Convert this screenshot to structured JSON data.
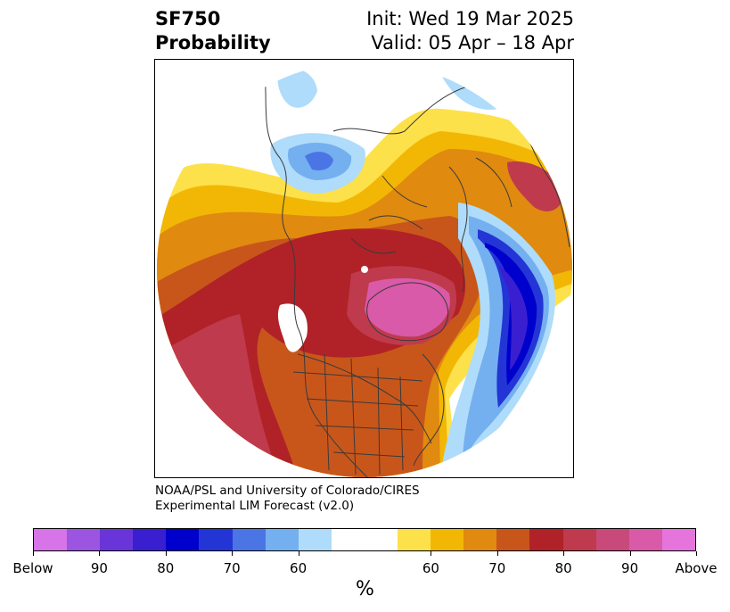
{
  "title": {
    "left_line1": "SF750",
    "left_line2": "Probability",
    "right_line1": "Init: Wed 19 Mar 2025",
    "right_line2": "Valid: 05 Apr – 18 Apr"
  },
  "credit": {
    "line1": "NOAA/PSL and University of Colorado/CIRES",
    "line2": "Experimental LIM Forecast (v2.0)"
  },
  "colorbar": {
    "colors": [
      "#d774e8",
      "#9b55e0",
      "#6a35d8",
      "#3a1fd0",
      "#0000cd",
      "#2435d6",
      "#4b74e4",
      "#74aff0",
      "#aedcfa",
      "#ffffff",
      "#ffffff",
      "#fde14a",
      "#f2b705",
      "#e08a10",
      "#c8561b",
      "#b02228",
      "#c03a4d",
      "#c84a7a",
      "#d95aa8",
      "#e575dd"
    ],
    "ticks": [
      "Below",
      "90",
      "80",
      "70",
      "60",
      "60",
      "70",
      "80",
      "90",
      "Above"
    ],
    "unit": "%"
  }
}
